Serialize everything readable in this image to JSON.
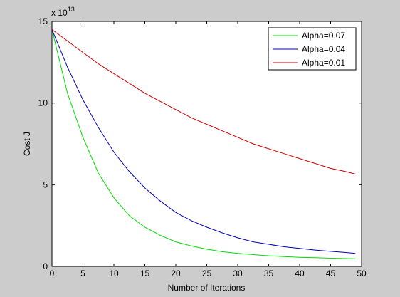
{
  "chart_data": {
    "type": "line",
    "title": "",
    "xlabel": "Number of Iterations",
    "ylabel": "Cost J",
    "y_exponent_label": "x 10",
    "y_exponent_value": "13",
    "xlim": [
      0,
      50
    ],
    "ylim": [
      0,
      15
    ],
    "x_ticks": [
      0,
      5,
      10,
      15,
      20,
      25,
      30,
      35,
      40,
      45,
      50
    ],
    "y_ticks": [
      0,
      5,
      10,
      15
    ],
    "grid": false,
    "legend_position": "top-right",
    "x": [
      0,
      2.5,
      5,
      7.5,
      10,
      12.5,
      15,
      17.5,
      20,
      22.5,
      25,
      27.5,
      30,
      32.5,
      35,
      37.5,
      40,
      42.5,
      45,
      47.5,
      49
    ],
    "series": [
      {
        "name": "Alpha=0.07",
        "color": "#00dd00",
        "values": [
          14.5,
          10.6,
          7.9,
          5.7,
          4.2,
          3.1,
          2.4,
          1.9,
          1.5,
          1.25,
          1.05,
          0.9,
          0.8,
          0.72,
          0.65,
          0.6,
          0.56,
          0.53,
          0.5,
          0.48,
          0.47
        ]
      },
      {
        "name": "Alpha=0.04",
        "color": "#0000bb",
        "values": [
          14.5,
          12.2,
          10.2,
          8.5,
          7.0,
          5.8,
          4.8,
          4.0,
          3.3,
          2.8,
          2.4,
          2.05,
          1.75,
          1.5,
          1.35,
          1.2,
          1.1,
          1.0,
          0.92,
          0.85,
          0.8
        ]
      },
      {
        "name": "Alpha=0.01",
        "color": "#cc0000",
        "values": [
          14.5,
          13.8,
          13.1,
          12.4,
          11.8,
          11.2,
          10.6,
          10.1,
          9.6,
          9.1,
          8.7,
          8.3,
          7.9,
          7.5,
          7.2,
          6.9,
          6.6,
          6.3,
          6.0,
          5.8,
          5.65
        ]
      }
    ]
  }
}
